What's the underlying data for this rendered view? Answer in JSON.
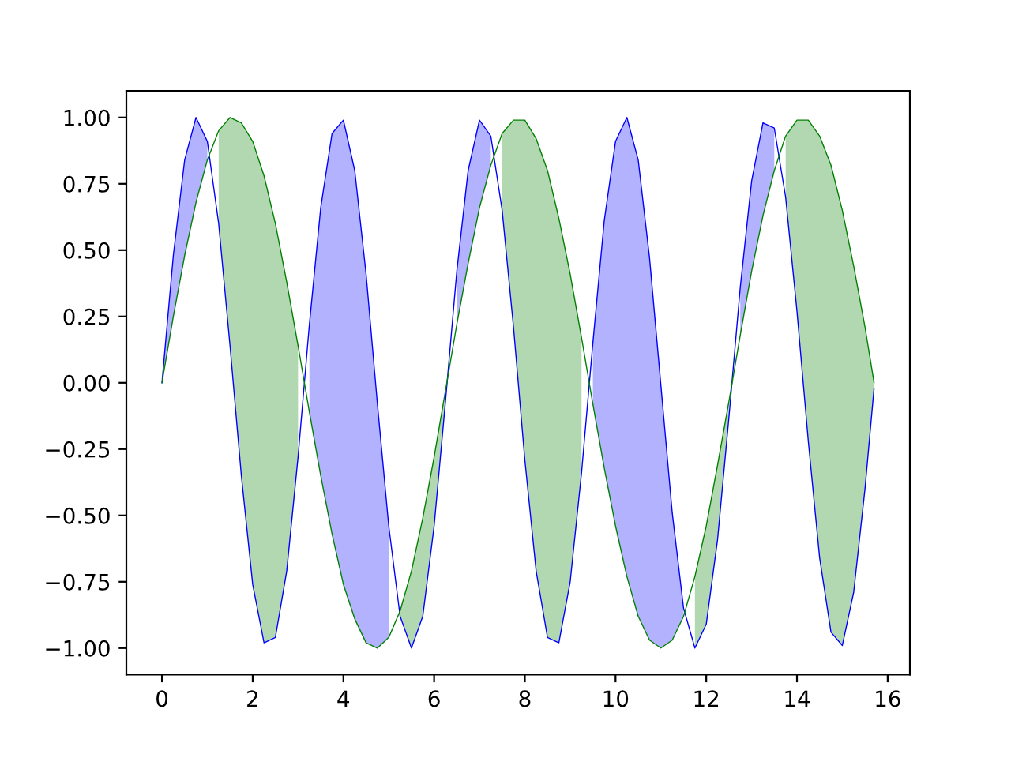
{
  "chart_data": {
    "type": "line",
    "x": [
      0,
      0.25,
      0.5,
      0.75,
      1.0,
      1.25,
      1.5,
      1.75,
      2.0,
      2.25,
      2.5,
      2.75,
      3.0,
      3.25,
      3.5,
      3.75,
      4.0,
      4.25,
      4.5,
      4.75,
      5.0,
      5.25,
      5.5,
      5.75,
      6.0,
      6.25,
      6.5,
      6.75,
      7.0,
      7.25,
      7.5,
      7.75,
      8.0,
      8.25,
      8.5,
      8.75,
      9.0,
      9.25,
      9.5,
      9.75,
      10.0,
      10.25,
      10.5,
      10.75,
      11.0,
      11.25,
      11.5,
      11.75,
      12.0,
      12.25,
      12.5,
      12.75,
      13.0,
      13.25,
      13.5,
      13.75,
      14.0,
      14.25,
      14.5,
      14.75,
      15.0,
      15.25,
      15.5,
      15.7
    ],
    "series": [
      {
        "color": "#0000ff",
        "values": [
          0,
          0.48,
          0.84,
          1.0,
          0.91,
          0.6,
          0.14,
          -0.35,
          -0.76,
          -0.98,
          -0.96,
          -0.71,
          -0.28,
          0.22,
          0.66,
          0.94,
          0.99,
          0.8,
          0.41,
          -0.08,
          -0.54,
          -0.88,
          -1.0,
          -0.88,
          -0.54,
          -0.07,
          0.42,
          0.8,
          0.99,
          0.93,
          0.65,
          0.21,
          -0.29,
          -0.71,
          -0.96,
          -0.98,
          -0.75,
          -0.34,
          0.15,
          0.61,
          0.91,
          1.0,
          0.84,
          0.47,
          -0.01,
          -0.49,
          -0.85,
          -1.0,
          -0.91,
          -0.59,
          -0.13,
          0.36,
          0.76,
          0.98,
          0.96,
          0.7,
          0.27,
          -0.22,
          -0.66,
          -0.94,
          -0.99,
          -0.79,
          -0.4,
          -0.02
        ]
      },
      {
        "color": "#008000",
        "values": [
          0,
          0.25,
          0.48,
          0.68,
          0.84,
          0.95,
          1.0,
          0.98,
          0.91,
          0.78,
          0.6,
          0.38,
          0.14,
          -0.11,
          -0.35,
          -0.57,
          -0.76,
          -0.89,
          -0.98,
          -1.0,
          -0.96,
          -0.86,
          -0.71,
          -0.51,
          -0.28,
          -0.03,
          0.22,
          0.45,
          0.66,
          0.82,
          0.94,
          0.99,
          0.99,
          0.92,
          0.8,
          0.62,
          0.41,
          0.17,
          -0.08,
          -0.32,
          -0.54,
          -0.73,
          -0.88,
          -0.97,
          -1.0,
          -0.97,
          -0.88,
          -0.73,
          -0.54,
          -0.31,
          -0.07,
          0.18,
          0.42,
          0.63,
          0.8,
          0.93,
          0.99,
          0.99,
          0.93,
          0.82,
          0.65,
          0.44,
          0.21,
          0.0
        ]
      },
      {
        "color": "#b2b2ff",
        "values": [
          null,
          null,
          null,
          null,
          null,
          null,
          null,
          null,
          null,
          null,
          null,
          null,
          null,
          null,
          null,
          null,
          null,
          null,
          null,
          null,
          null,
          null,
          null,
          null,
          null,
          null,
          null,
          null,
          null,
          null,
          null,
          null,
          null,
          null,
          null,
          null,
          null,
          null,
          null,
          null,
          null,
          null,
          null,
          null,
          null,
          null,
          null,
          null,
          null,
          null,
          null,
          null,
          null,
          null,
          null,
          null,
          null,
          null,
          null,
          null,
          null,
          null,
          null,
          null
        ],
        "lower": [
          0,
          0.25,
          0.48,
          0.68,
          0.84,
          null,
          null,
          null,
          null,
          null,
          null,
          null,
          null,
          -0.11,
          -0.35,
          -0.57,
          -0.76,
          -0.89,
          -0.98,
          -1.0,
          -0.96,
          null,
          null,
          null,
          null,
          null,
          0.22,
          0.45,
          0.66,
          0.82,
          null,
          null,
          null,
          null,
          null,
          null,
          null,
          null,
          -0.08,
          -0.32,
          -0.54,
          -0.73,
          -0.88,
          -0.97,
          -1.0,
          -0.97,
          -0.88,
          null,
          null,
          null,
          null,
          0.18,
          0.42,
          0.63,
          0.8,
          null,
          null,
          null,
          null,
          null,
          null,
          null,
          null,
          null
        ],
        "upper": [
          0,
          0.48,
          0.84,
          1.0,
          0.91,
          null,
          null,
          null,
          null,
          null,
          null,
          null,
          null,
          0.22,
          0.66,
          0.94,
          0.99,
          0.8,
          0.41,
          -0.08,
          -0.54,
          null,
          null,
          null,
          null,
          null,
          0.42,
          0.8,
          0.99,
          0.93,
          null,
          null,
          null,
          null,
          null,
          null,
          null,
          null,
          0.15,
          0.61,
          0.91,
          1.0,
          0.84,
          0.47,
          -0.01,
          -0.49,
          -0.85,
          null,
          null,
          null,
          null,
          0.36,
          0.76,
          0.98,
          0.96,
          null,
          null,
          null,
          null,
          null,
          null,
          null,
          null,
          null
        ]
      },
      {
        "color": "#b2d8b2",
        "values": [
          null,
          null,
          null,
          null,
          null,
          null,
          null,
          null,
          null,
          null,
          null,
          null,
          null,
          null,
          null,
          null,
          null,
          null,
          null,
          null,
          null,
          null,
          null,
          null,
          null,
          null,
          null,
          null,
          null,
          null,
          null,
          null,
          null,
          null,
          null,
          null,
          null,
          null,
          null,
          null,
          null,
          null,
          null,
          null,
          null,
          null,
          null,
          null,
          null,
          null,
          null,
          null,
          null,
          null,
          null,
          null,
          null,
          null,
          null,
          null,
          null,
          null,
          null,
          null
        ],
        "lower": [
          null,
          null,
          null,
          null,
          null,
          0.6,
          0.14,
          -0.35,
          -0.76,
          -0.98,
          -0.96,
          -0.71,
          -0.28,
          null,
          null,
          null,
          null,
          null,
          null,
          null,
          null,
          -0.88,
          -1.0,
          -0.88,
          -0.54,
          -0.07,
          null,
          null,
          null,
          null,
          0.65,
          0.21,
          -0.29,
          -0.71,
          -0.96,
          -0.98,
          -0.75,
          -0.34,
          null,
          null,
          null,
          null,
          null,
          null,
          null,
          null,
          null,
          -1.0,
          -0.91,
          -0.59,
          -0.13,
          null,
          null,
          null,
          null,
          0.7,
          0.27,
          -0.22,
          -0.66,
          -0.94,
          -0.99,
          -0.79,
          -0.4,
          -0.02
        ],
        "upper": [
          null,
          null,
          null,
          null,
          null,
          0.95,
          1.0,
          0.98,
          0.91,
          0.78,
          0.6,
          0.38,
          0.14,
          null,
          null,
          null,
          null,
          null,
          null,
          null,
          null,
          -0.86,
          -0.71,
          -0.51,
          -0.28,
          -0.03,
          null,
          null,
          null,
          null,
          0.94,
          0.99,
          0.99,
          0.92,
          0.8,
          0.62,
          0.41,
          0.17,
          null,
          null,
          null,
          null,
          null,
          null,
          null,
          null,
          null,
          -0.73,
          -0.54,
          -0.31,
          -0.07,
          null,
          null,
          null,
          null,
          0.93,
          0.99,
          0.99,
          0.93,
          0.82,
          0.65,
          0.44,
          0.21,
          0.0
        ]
      }
    ],
    "xlim": [
      -0.785,
      16.49
    ],
    "ylim": [
      -1.1,
      1.1
    ],
    "xticks": [
      0,
      2,
      4,
      6,
      8,
      10,
      12,
      14,
      16
    ],
    "yticks": [
      {
        "value": -1.0,
        "label": "−1.00"
      },
      {
        "value": -0.75,
        "label": "−0.75"
      },
      {
        "value": -0.5,
        "label": "−0.50"
      },
      {
        "value": -0.25,
        "label": "−0.25"
      },
      {
        "value": 0,
        "label": "0.00"
      },
      {
        "value": 0.25,
        "label": "0.25"
      },
      {
        "value": 0.5,
        "label": "0.50"
      },
      {
        "value": 0.75,
        "label": "0.75"
      },
      {
        "value": 1.0,
        "label": "1.00"
      }
    ]
  }
}
